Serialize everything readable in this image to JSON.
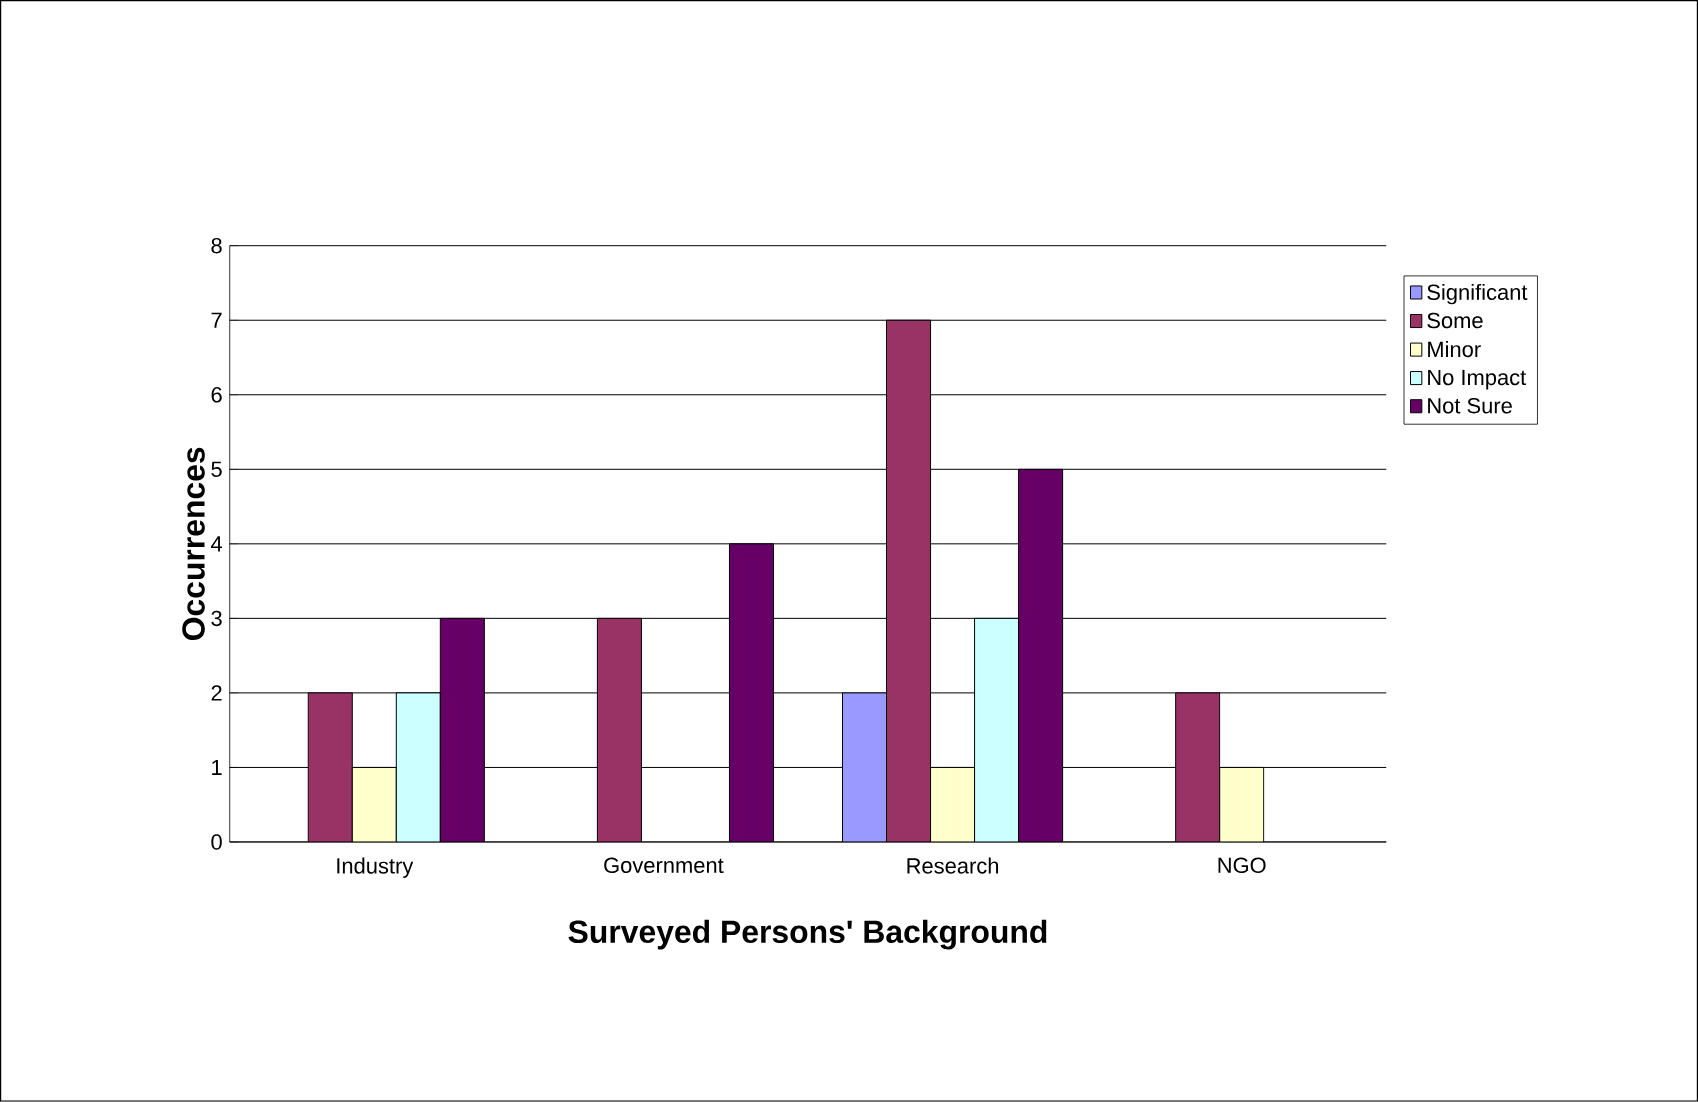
{
  "chart_data": {
    "type": "bar",
    "xlabel": "Surveyed Persons' Background",
    "ylabel": "Occurrences",
    "categories": [
      "Industry",
      "Government",
      "Research",
      "NGO"
    ],
    "series": [
      {
        "name": "Significant",
        "color": "#9999ff",
        "values": [
          null,
          null,
          2,
          null
        ]
      },
      {
        "name": "Some",
        "color": "#993366",
        "values": [
          2,
          3,
          7,
          2
        ]
      },
      {
        "name": "Minor",
        "color": "#ffffcc",
        "values": [
          1,
          null,
          1,
          1
        ]
      },
      {
        "name": "No Impact",
        "color": "#ccffff",
        "values": [
          2,
          null,
          3,
          null
        ]
      },
      {
        "name": "Not Sure",
        "color": "#660066",
        "values": [
          3,
          4,
          5,
          null
        ]
      }
    ],
    "ylim": [
      0,
      8
    ],
    "yticks": [
      0,
      1,
      2,
      3,
      4,
      5,
      6,
      7,
      8
    ],
    "grid": "y",
    "legend": "right"
  }
}
